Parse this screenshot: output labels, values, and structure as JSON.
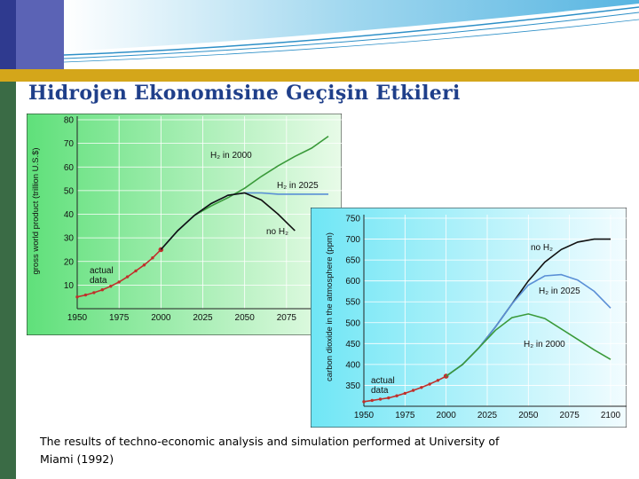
{
  "slide": {
    "title": "Hidrojen Ekonomisine Geçişin Etkileri",
    "caption": "The results of techno-economic analysis and simulation performed at University of Miami (1992)"
  },
  "colors": {
    "header_blue": "#2f3a8f",
    "header_light_blue": "#5b63b5",
    "gold_band": "#d4a61a",
    "side_green": "#3a6b45",
    "title_color": "#1f3f8a"
  },
  "chart_data": [
    {
      "type": "line",
      "title": "",
      "ylabel": "gross world product (trillion U.S.$)",
      "xlabel": "",
      "xlim": [
        1950,
        2100
      ],
      "ylim": [
        0,
        80
      ],
      "xticks": [
        "1950",
        "1975",
        "2000",
        "2025",
        "2050",
        "2075"
      ],
      "yticks": [
        "10",
        "20",
        "30",
        "40",
        "50",
        "60",
        "70",
        "80"
      ],
      "grid": true,
      "series": [
        {
          "name": "actual data",
          "color": "#c0302b",
          "x": [
            1950,
            1955,
            1960,
            1965,
            1970,
            1975,
            1980,
            1985,
            1990,
            1995,
            2000
          ],
          "y": [
            5,
            5.8,
            6.8,
            8,
            9.5,
            11.3,
            13.5,
            16,
            18.5,
            21.5,
            25
          ]
        },
        {
          "name": "H₂ in 2000",
          "color": "#3a9a3a",
          "x": [
            2000,
            2010,
            2020,
            2030,
            2040,
            2050,
            2060,
            2070,
            2080,
            2090,
            2100
          ],
          "y": [
            25,
            33,
            39.5,
            43.5,
            47,
            51,
            56,
            60.5,
            64.5,
            68,
            73
          ]
        },
        {
          "name": "H₂ in 2025",
          "color": "#5a8fd6",
          "x": [
            2000,
            2010,
            2020,
            2030,
            2040,
            2050,
            2060,
            2070,
            2080,
            2090,
            2100
          ],
          "y": [
            25,
            33,
            39.5,
            44.5,
            48,
            49,
            49,
            48.5,
            48.5,
            48.5,
            48.5
          ]
        },
        {
          "name": "no H₂",
          "color": "#111111",
          "x": [
            2000,
            2010,
            2020,
            2030,
            2040,
            2050,
            2060,
            2070,
            2080
          ],
          "y": [
            25,
            33,
            39.5,
            44.5,
            48,
            49,
            46,
            40,
            33
          ]
        }
      ],
      "annotations": [
        "actual data",
        "H₂ in 2000",
        "H₂ in 2025",
        "no H₂"
      ]
    },
    {
      "type": "line",
      "title": "",
      "ylabel": "carbon dioxide in the atmosphere (ppm)",
      "xlabel": "",
      "xlim": [
        1950,
        2100
      ],
      "ylim": [
        300,
        750
      ],
      "xticks": [
        "1950",
        "1975",
        "2000",
        "2025",
        "2050",
        "2075",
        "2100"
      ],
      "yticks": [
        "350",
        "400",
        "450",
        "500",
        "550",
        "600",
        "650",
        "700",
        "750"
      ],
      "grid": true,
      "series": [
        {
          "name": "actual data",
          "color": "#c0302b",
          "x": [
            1950,
            1955,
            1960,
            1965,
            1970,
            1975,
            1980,
            1985,
            1990,
            1995,
            2000
          ],
          "y": [
            311,
            314,
            317,
            320,
            325,
            331,
            338,
            345,
            353,
            362,
            372
          ]
        },
        {
          "name": "no H₂",
          "color": "#111111",
          "x": [
            2000,
            2010,
            2020,
            2030,
            2040,
            2050,
            2060,
            2070,
            2080,
            2090,
            2100
          ],
          "y": [
            372,
            400,
            440,
            490,
            545,
            600,
            645,
            675,
            693,
            700,
            700
          ]
        },
        {
          "name": "H₂ in 2025",
          "color": "#5a8fd6",
          "x": [
            2000,
            2010,
            2020,
            2030,
            2040,
            2050,
            2060,
            2070,
            2080,
            2090,
            2100
          ],
          "y": [
            372,
            400,
            440,
            490,
            545,
            590,
            612,
            615,
            602,
            575,
            535
          ]
        },
        {
          "name": "H₂ in 2000",
          "color": "#3a9a3a",
          "x": [
            2000,
            2010,
            2020,
            2030,
            2040,
            2050,
            2060,
            2070,
            2080,
            2090,
            2100
          ],
          "y": [
            372,
            400,
            440,
            482,
            512,
            521,
            510,
            485,
            460,
            435,
            412
          ]
        }
      ],
      "annotations": [
        "actual data",
        "no H₂",
        "H₂ in 2025",
        "H₂ in 2000"
      ]
    }
  ]
}
